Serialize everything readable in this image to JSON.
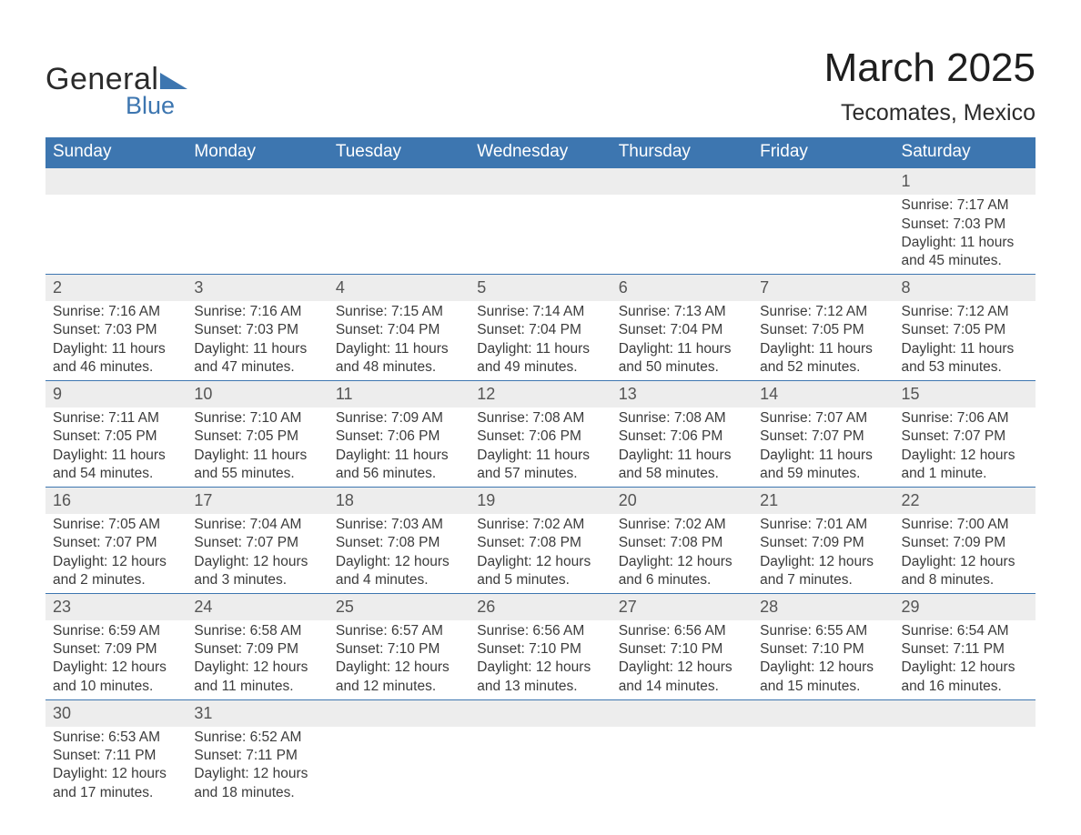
{
  "logo": {
    "text1": "General",
    "text2": "Blue",
    "tri_color": "#3d76b0"
  },
  "title": {
    "month_year": "March 2025",
    "location": "Tecomates, Mexico"
  },
  "colors": {
    "header_bg": "#3d76b0",
    "header_text": "#ffffff",
    "daynum_bg": "#ededed",
    "row_border": "#3d76b0",
    "body_text": "#3b3b3b",
    "daynum_text": "#555555"
  },
  "day_headers": [
    "Sunday",
    "Monday",
    "Tuesday",
    "Wednesday",
    "Thursday",
    "Friday",
    "Saturday"
  ],
  "weeks": [
    [
      null,
      null,
      null,
      null,
      null,
      null,
      {
        "n": "1",
        "sr": "Sunrise: 7:17 AM",
        "ss": "Sunset: 7:03 PM",
        "d1": "Daylight: 11 hours",
        "d2": "and 45 minutes."
      }
    ],
    [
      {
        "n": "2",
        "sr": "Sunrise: 7:16 AM",
        "ss": "Sunset: 7:03 PM",
        "d1": "Daylight: 11 hours",
        "d2": "and 46 minutes."
      },
      {
        "n": "3",
        "sr": "Sunrise: 7:16 AM",
        "ss": "Sunset: 7:03 PM",
        "d1": "Daylight: 11 hours",
        "d2": "and 47 minutes."
      },
      {
        "n": "4",
        "sr": "Sunrise: 7:15 AM",
        "ss": "Sunset: 7:04 PM",
        "d1": "Daylight: 11 hours",
        "d2": "and 48 minutes."
      },
      {
        "n": "5",
        "sr": "Sunrise: 7:14 AM",
        "ss": "Sunset: 7:04 PM",
        "d1": "Daylight: 11 hours",
        "d2": "and 49 minutes."
      },
      {
        "n": "6",
        "sr": "Sunrise: 7:13 AM",
        "ss": "Sunset: 7:04 PM",
        "d1": "Daylight: 11 hours",
        "d2": "and 50 minutes."
      },
      {
        "n": "7",
        "sr": "Sunrise: 7:12 AM",
        "ss": "Sunset: 7:05 PM",
        "d1": "Daylight: 11 hours",
        "d2": "and 52 minutes."
      },
      {
        "n": "8",
        "sr": "Sunrise: 7:12 AM",
        "ss": "Sunset: 7:05 PM",
        "d1": "Daylight: 11 hours",
        "d2": "and 53 minutes."
      }
    ],
    [
      {
        "n": "9",
        "sr": "Sunrise: 7:11 AM",
        "ss": "Sunset: 7:05 PM",
        "d1": "Daylight: 11 hours",
        "d2": "and 54 minutes."
      },
      {
        "n": "10",
        "sr": "Sunrise: 7:10 AM",
        "ss": "Sunset: 7:05 PM",
        "d1": "Daylight: 11 hours",
        "d2": "and 55 minutes."
      },
      {
        "n": "11",
        "sr": "Sunrise: 7:09 AM",
        "ss": "Sunset: 7:06 PM",
        "d1": "Daylight: 11 hours",
        "d2": "and 56 minutes."
      },
      {
        "n": "12",
        "sr": "Sunrise: 7:08 AM",
        "ss": "Sunset: 7:06 PM",
        "d1": "Daylight: 11 hours",
        "d2": "and 57 minutes."
      },
      {
        "n": "13",
        "sr": "Sunrise: 7:08 AM",
        "ss": "Sunset: 7:06 PM",
        "d1": "Daylight: 11 hours",
        "d2": "and 58 minutes."
      },
      {
        "n": "14",
        "sr": "Sunrise: 7:07 AM",
        "ss": "Sunset: 7:07 PM",
        "d1": "Daylight: 11 hours",
        "d2": "and 59 minutes."
      },
      {
        "n": "15",
        "sr": "Sunrise: 7:06 AM",
        "ss": "Sunset: 7:07 PM",
        "d1": "Daylight: 12 hours",
        "d2": "and 1 minute."
      }
    ],
    [
      {
        "n": "16",
        "sr": "Sunrise: 7:05 AM",
        "ss": "Sunset: 7:07 PM",
        "d1": "Daylight: 12 hours",
        "d2": "and 2 minutes."
      },
      {
        "n": "17",
        "sr": "Sunrise: 7:04 AM",
        "ss": "Sunset: 7:07 PM",
        "d1": "Daylight: 12 hours",
        "d2": "and 3 minutes."
      },
      {
        "n": "18",
        "sr": "Sunrise: 7:03 AM",
        "ss": "Sunset: 7:08 PM",
        "d1": "Daylight: 12 hours",
        "d2": "and 4 minutes."
      },
      {
        "n": "19",
        "sr": "Sunrise: 7:02 AM",
        "ss": "Sunset: 7:08 PM",
        "d1": "Daylight: 12 hours",
        "d2": "and 5 minutes."
      },
      {
        "n": "20",
        "sr": "Sunrise: 7:02 AM",
        "ss": "Sunset: 7:08 PM",
        "d1": "Daylight: 12 hours",
        "d2": "and 6 minutes."
      },
      {
        "n": "21",
        "sr": "Sunrise: 7:01 AM",
        "ss": "Sunset: 7:09 PM",
        "d1": "Daylight: 12 hours",
        "d2": "and 7 minutes."
      },
      {
        "n": "22",
        "sr": "Sunrise: 7:00 AM",
        "ss": "Sunset: 7:09 PM",
        "d1": "Daylight: 12 hours",
        "d2": "and 8 minutes."
      }
    ],
    [
      {
        "n": "23",
        "sr": "Sunrise: 6:59 AM",
        "ss": "Sunset: 7:09 PM",
        "d1": "Daylight: 12 hours",
        "d2": "and 10 minutes."
      },
      {
        "n": "24",
        "sr": "Sunrise: 6:58 AM",
        "ss": "Sunset: 7:09 PM",
        "d1": "Daylight: 12 hours",
        "d2": "and 11 minutes."
      },
      {
        "n": "25",
        "sr": "Sunrise: 6:57 AM",
        "ss": "Sunset: 7:10 PM",
        "d1": "Daylight: 12 hours",
        "d2": "and 12 minutes."
      },
      {
        "n": "26",
        "sr": "Sunrise: 6:56 AM",
        "ss": "Sunset: 7:10 PM",
        "d1": "Daylight: 12 hours",
        "d2": "and 13 minutes."
      },
      {
        "n": "27",
        "sr": "Sunrise: 6:56 AM",
        "ss": "Sunset: 7:10 PM",
        "d1": "Daylight: 12 hours",
        "d2": "and 14 minutes."
      },
      {
        "n": "28",
        "sr": "Sunrise: 6:55 AM",
        "ss": "Sunset: 7:10 PM",
        "d1": "Daylight: 12 hours",
        "d2": "and 15 minutes."
      },
      {
        "n": "29",
        "sr": "Sunrise: 6:54 AM",
        "ss": "Sunset: 7:11 PM",
        "d1": "Daylight: 12 hours",
        "d2": "and 16 minutes."
      }
    ],
    [
      {
        "n": "30",
        "sr": "Sunrise: 6:53 AM",
        "ss": "Sunset: 7:11 PM",
        "d1": "Daylight: 12 hours",
        "d2": "and 17 minutes."
      },
      {
        "n": "31",
        "sr": "Sunrise: 6:52 AM",
        "ss": "Sunset: 7:11 PM",
        "d1": "Daylight: 12 hours",
        "d2": "and 18 minutes."
      },
      null,
      null,
      null,
      null,
      null
    ]
  ]
}
